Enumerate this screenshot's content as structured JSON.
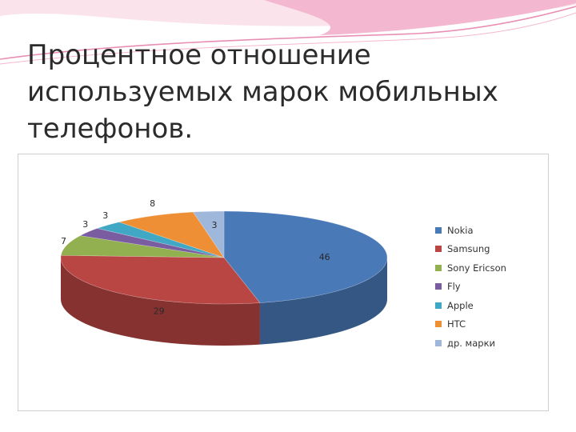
{
  "slide": {
    "title_lines": [
      "Процентное отношение",
      "используемых марок мобильных",
      "телефонов."
    ],
    "accent_colors": [
      "#f4b7d0",
      "#e88fb3",
      "#fbe3ec"
    ]
  },
  "chart_data": {
    "type": "pie",
    "title": "",
    "style": "3d",
    "legend_position": "right",
    "categories": [
      "Nokia",
      "Samsung",
      "Sony Ericson",
      "Fly",
      "Apple",
      "HTC",
      "др. марки"
    ],
    "values": [
      46,
      29,
      7,
      3,
      3,
      8,
      3
    ],
    "data_labels": [
      "46",
      "29",
      "7",
      "3",
      "3",
      "8",
      "3"
    ],
    "colors": [
      "#4a79b8",
      "#b94643",
      "#92b050",
      "#7a5ca0",
      "#40a8c4",
      "#ee8f35",
      "#9fb7db"
    ]
  }
}
